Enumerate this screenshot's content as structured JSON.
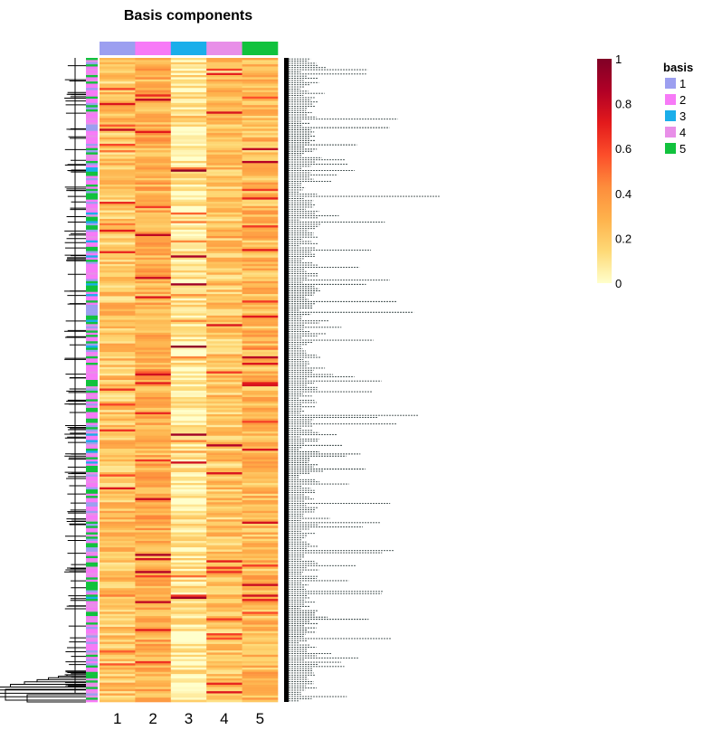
{
  "chart_data": {
    "type": "heatmap",
    "title": "Basis components",
    "columns": [
      "1",
      "2",
      "3",
      "4",
      "5"
    ],
    "column_annotation_colors": [
      "#9c9ff0",
      "#f77af7",
      "#1aaeea",
      "#e88fe8",
      "#11c23d"
    ],
    "color_scale": {
      "min": 0,
      "max": 1,
      "ticks": [
        "0",
        "0.2",
        "0.4",
        "0.6",
        "0.8",
        "1"
      ],
      "colors": [
        "#ffffcc",
        "#fed976",
        "#feb24c",
        "#fd8d3c",
        "#fc4e2a",
        "#e31a1c",
        "#b10026",
        "#800026"
      ]
    },
    "legend": {
      "title": "basis",
      "placement": "top-right",
      "items": [
        {
          "label": "1",
          "color": "#9c9ff0"
        },
        {
          "label": "2",
          "color": "#f77af7"
        },
        {
          "label": "3",
          "color": "#1aaeea"
        },
        {
          "label": "4",
          "color": "#e88fe8"
        },
        {
          "label": "5",
          "color": "#11c23d"
        }
      ]
    },
    "row_dendrogram": "left",
    "row_annotation": "left"
  }
}
